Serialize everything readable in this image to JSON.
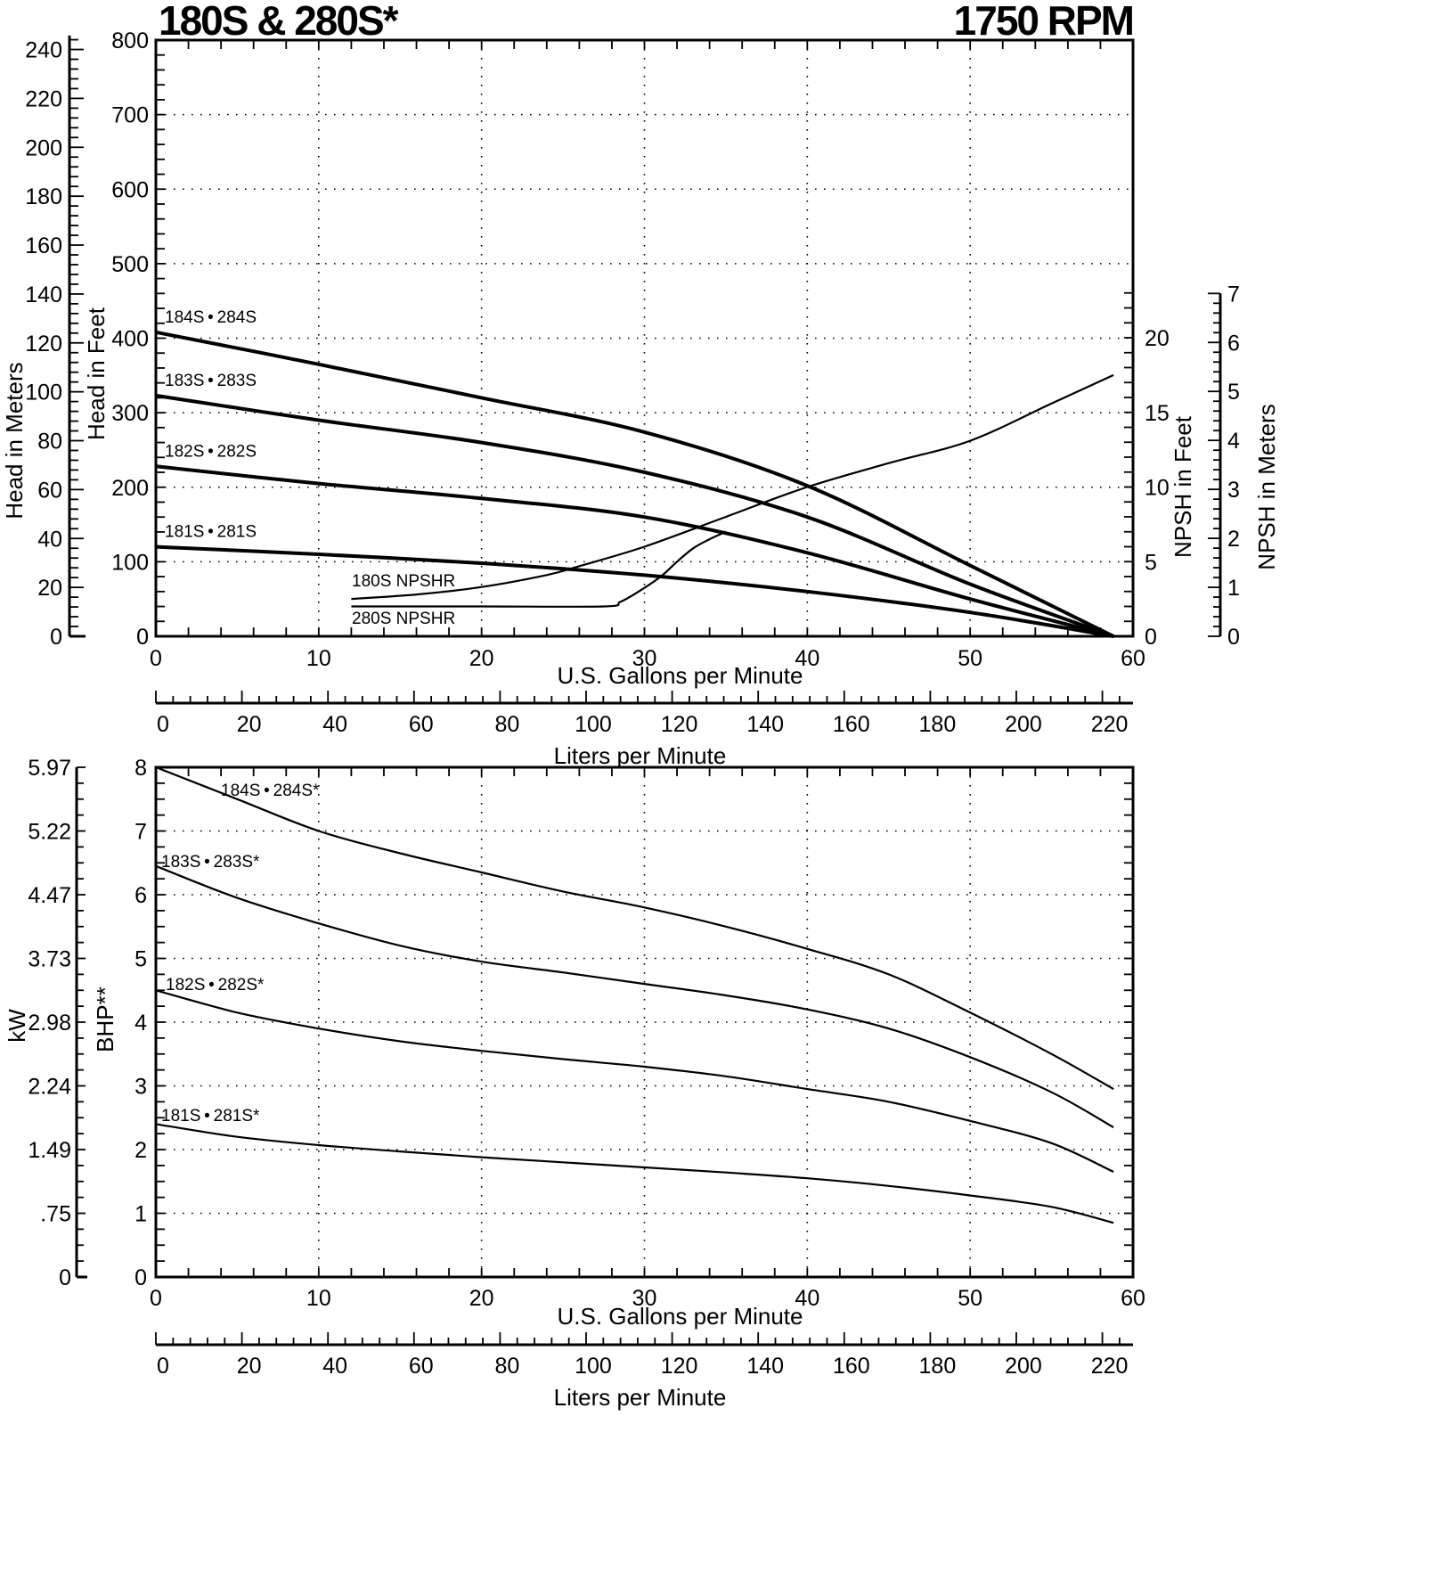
{
  "header": {
    "title_left": "180S & 280S*",
    "title_right": "1750 RPM"
  },
  "chart_data": [
    {
      "type": "line",
      "title": "180S & 280S* Head / NPSHR Curves — 1750 RPM",
      "xlabel": "U.S. Gallons per Minute",
      "xlabel_secondary": "Liters per Minute",
      "ylabel": "Head in Feet",
      "ylabel_secondary_left": "Head in Meters",
      "ylabel_right": "NPSH in Feet",
      "ylabel_right_secondary": "NPSH in Meters",
      "xlim": [
        0,
        60
      ],
      "ylim": [
        0,
        800
      ],
      "y_right_lim": [
        0,
        20
      ],
      "grid": true,
      "x_ticks": [
        "0",
        "10",
        "20",
        "30",
        "40",
        "50",
        "60"
      ],
      "x_secondary_ticks": [
        "0",
        "20",
        "40",
        "60",
        "80",
        "100",
        "120",
        "140",
        "160",
        "180",
        "200",
        "220"
      ],
      "y_ticks": [
        "0",
        "100",
        "200",
        "300",
        "400",
        "500",
        "600",
        "700",
        "800"
      ],
      "y_secondary_ticks": [
        "0",
        "20",
        "40",
        "60",
        "80",
        "100",
        "120",
        "140",
        "160",
        "180",
        "200",
        "220",
        "240"
      ],
      "y_right_ticks": [
        "0",
        "5",
        "10",
        "15",
        "20"
      ],
      "y_right_secondary_ticks": [
        "0",
        "1",
        "2",
        "3",
        "4",
        "5",
        "6",
        "7"
      ],
      "series": [
        {
          "name": "184S • 284S",
          "axis": "head_ft",
          "x": [
            0,
            10,
            20,
            30,
            40,
            50,
            58.8
          ],
          "values": [
            408,
            365,
            320,
            274,
            202,
            95,
            0
          ]
        },
        {
          "name": "183S • 283S",
          "axis": "head_ft",
          "x": [
            0,
            10,
            20,
            30,
            40,
            50,
            58.8
          ],
          "values": [
            323,
            290,
            260,
            220,
            160,
            70,
            0
          ]
        },
        {
          "name": "182S • 282S",
          "axis": "head_ft",
          "x": [
            0,
            10,
            20,
            30,
            40,
            50,
            58.8
          ],
          "values": [
            228,
            205,
            185,
            160,
            112,
            50,
            0
          ]
        },
        {
          "name": "181S • 281S",
          "axis": "head_ft",
          "x": [
            0,
            10,
            20,
            30,
            40,
            50,
            58.8
          ],
          "values": [
            120,
            110,
            98,
            82,
            60,
            32,
            0
          ]
        },
        {
          "name": "180S NPSHR",
          "axis": "npsh_ft",
          "x": [
            12,
            16,
            20,
            24,
            26,
            30,
            35,
            40,
            45,
            50,
            55,
            58.8
          ],
          "values": [
            2.5,
            2.8,
            3.3,
            4.1,
            4.7,
            6.0,
            8.0,
            10.0,
            11.6,
            13.1,
            15.6,
            17.5
          ]
        },
        {
          "name": "280S NPSHR",
          "axis": "npsh_ft",
          "x": [
            12,
            20,
            27.5,
            28.5,
            29.5,
            31,
            32,
            33,
            34,
            35
          ],
          "values": [
            2.0,
            2.0,
            2.0,
            2.3,
            2.9,
            4.0,
            5.0,
            5.9,
            6.5,
            7.0
          ]
        }
      ]
    },
    {
      "type": "line",
      "title": "180S & 280S* Brake Horsepower",
      "xlabel": "U.S. Gallons per Minute",
      "xlabel_secondary": "Liters per Minute",
      "ylabel": "BHP**",
      "ylabel_secondary_left": "kW",
      "xlim": [
        0,
        60
      ],
      "ylim": [
        0,
        8
      ],
      "grid": true,
      "x_ticks": [
        "0",
        "10",
        "20",
        "30",
        "40",
        "50",
        "60"
      ],
      "x_secondary_ticks": [
        "0",
        "20",
        "40",
        "60",
        "80",
        "100",
        "120",
        "140",
        "160",
        "180",
        "200",
        "220"
      ],
      "y_ticks": [
        "0",
        "1",
        "2",
        "3",
        "4",
        "5",
        "6",
        "7",
        "8"
      ],
      "y_secondary_ticks": [
        "0",
        ".75",
        "1.49",
        "2.24",
        "2.98",
        "3.73",
        "4.47",
        "5.22",
        "5.97"
      ],
      "series": [
        {
          "name": "184S • 284S*",
          "x": [
            0,
            5,
            10,
            15,
            20,
            25,
            30,
            35,
            40,
            45,
            50,
            55,
            58.8
          ],
          "values": [
            8.0,
            7.5,
            7.0,
            6.65,
            6.35,
            6.05,
            5.8,
            5.5,
            5.15,
            4.75,
            4.15,
            3.5,
            2.95
          ]
        },
        {
          "name": "183S • 283S*",
          "x": [
            0,
            5,
            10,
            15,
            20,
            25,
            30,
            35,
            40,
            45,
            50,
            55,
            58.8
          ],
          "values": [
            6.45,
            5.95,
            5.55,
            5.2,
            4.95,
            4.78,
            4.6,
            4.42,
            4.2,
            3.9,
            3.45,
            2.9,
            2.35
          ]
        },
        {
          "name": "182S • 282S*",
          "x": [
            0,
            5,
            10,
            15,
            20,
            25,
            30,
            35,
            40,
            45,
            50,
            55,
            58.8
          ],
          "values": [
            4.5,
            4.15,
            3.9,
            3.7,
            3.55,
            3.42,
            3.3,
            3.15,
            2.95,
            2.75,
            2.45,
            2.1,
            1.65
          ]
        },
        {
          "name": "181S • 281S*",
          "x": [
            0,
            5,
            10,
            15,
            20,
            25,
            30,
            35,
            40,
            45,
            50,
            55,
            58.8
          ],
          "values": [
            2.4,
            2.2,
            2.07,
            1.97,
            1.88,
            1.8,
            1.72,
            1.64,
            1.55,
            1.43,
            1.28,
            1.1,
            0.85
          ]
        }
      ]
    }
  ]
}
